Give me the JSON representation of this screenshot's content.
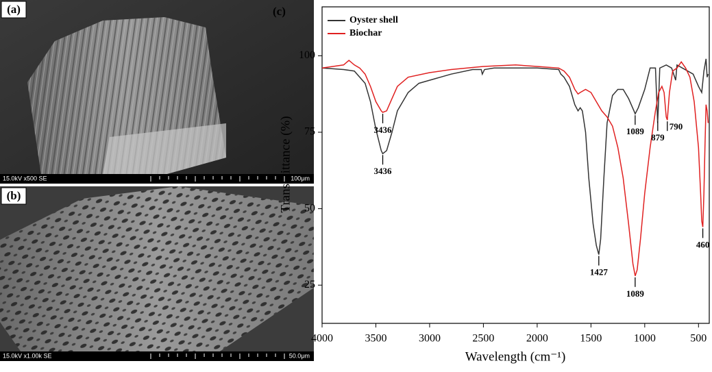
{
  "images": [
    {
      "label": "(a)",
      "caption": "15.0kV x500 SE",
      "scale": "100μm"
    },
    {
      "label": "(b)",
      "caption": "15.0kV x1.00k SE",
      "scale": "50.0μm"
    }
  ],
  "chart_data": {
    "type": "line",
    "label": "(c)",
    "xlabel": "Wavelength (cm⁻¹)",
    "ylabel": "Transmittance (%)",
    "xlim": [
      4000,
      400
    ],
    "ylim": [
      12.5,
      116
    ],
    "xticks": [
      4000,
      3500,
      3000,
      2500,
      2000,
      1500,
      1000,
      500
    ],
    "yticks": [
      25,
      50,
      75,
      100
    ],
    "legend": "upper left",
    "series": [
      {
        "name": "Oyster shell",
        "color": "#333333",
        "x": [
          4000,
          3800,
          3700,
          3600,
          3550,
          3500,
          3450,
          3436,
          3400,
          3350,
          3300,
          3200,
          3100,
          3000,
          2900,
          2800,
          2600,
          2520,
          2510,
          2490,
          2400,
          2000,
          1800,
          1780,
          1750,
          1700,
          1650,
          1620,
          1600,
          1580,
          1550,
          1520,
          1480,
          1450,
          1427,
          1410,
          1380,
          1350,
          1300,
          1250,
          1200,
          1150,
          1100,
          1089,
          1060,
          1000,
          950,
          900,
          880,
          875,
          860,
          800,
          750,
          712,
          700,
          650,
          600,
          550,
          500,
          470,
          450,
          430,
          420,
          410
        ],
        "values": [
          96,
          95.5,
          95,
          91,
          85,
          76,
          69,
          68,
          69,
          75,
          82,
          88,
          91,
          92,
          93,
          94,
          95.5,
          95.5,
          94,
          95.5,
          96,
          96,
          95.5,
          94,
          93,
          90,
          84,
          82,
          83,
          82,
          75,
          60,
          45,
          38,
          35,
          40,
          60,
          78,
          87,
          89,
          89,
          86,
          82,
          81,
          83,
          89,
          96,
          96,
          78,
          82,
          96,
          97,
          96,
          92,
          97,
          96,
          95,
          94,
          90,
          88,
          95,
          99,
          93,
          94
        ]
      },
      {
        "name": "Biochar",
        "color": "#e02020",
        "x": [
          4000,
          3800,
          3750,
          3700,
          3650,
          3600,
          3550,
          3500,
          3450,
          3436,
          3400,
          3350,
          3300,
          3200,
          3000,
          2800,
          2500,
          2200,
          2000,
          1800,
          1750,
          1700,
          1650,
          1620,
          1600,
          1550,
          1500,
          1450,
          1400,
          1350,
          1300,
          1250,
          1200,
          1150,
          1110,
          1089,
          1070,
          1040,
          1000,
          950,
          900,
          870,
          840,
          820,
          800,
          790,
          770,
          740,
          700,
          660,
          620,
          580,
          540,
          500,
          480,
          470,
          460,
          450,
          440,
          430,
          420,
          410
        ],
        "values": [
          96,
          97,
          98.5,
          97,
          96,
          94,
          90,
          85,
          82,
          81.5,
          82,
          86,
          90,
          93,
          94.5,
          95.5,
          96.5,
          97,
          96.5,
          96,
          95,
          93,
          89,
          87.5,
          88,
          89,
          88,
          85,
          82,
          80,
          77,
          70,
          60,
          45,
          32,
          28,
          30,
          40,
          55,
          70,
          82,
          88,
          90,
          88,
          80,
          79,
          88,
          95,
          96,
          98,
          96,
          93,
          85,
          70,
          55,
          46,
          44,
          55,
          70,
          84,
          82,
          78
        ]
      }
    ],
    "annotations": [
      {
        "label": "3436",
        "x": 3436,
        "y": 68,
        "placement": "below"
      },
      {
        "label": "3436",
        "x": 3436,
        "y": 81.5,
        "placement": "below"
      },
      {
        "label": "1427",
        "x": 1427,
        "y": 35,
        "placement": "below"
      },
      {
        "label": "1089",
        "x": 1089,
        "y": 28,
        "placement": "below"
      },
      {
        "label": "1089",
        "x": 1089,
        "y": 81,
        "placement": "below"
      },
      {
        "label": "879",
        "x": 879,
        "y": 79,
        "placement": "below"
      },
      {
        "label": "790",
        "x": 790,
        "y": 79,
        "placement": "right"
      },
      {
        "label": "460",
        "x": 460,
        "y": 44,
        "placement": "below"
      }
    ]
  }
}
